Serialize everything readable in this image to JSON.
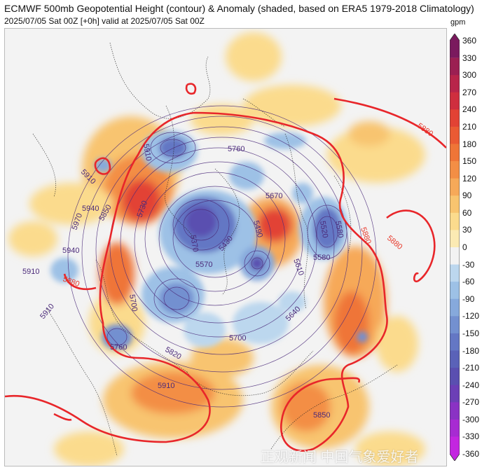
{
  "header": {
    "title": "ECMWF 500mb Geopotential Height (contour) & Anomaly (shaded, based on ERA5 1979-2018 Climatology)",
    "subtitle": "2025/07/05 Sat 00Z [+0h] valid at 2025/07/05 Sat 00Z"
  },
  "colorbar": {
    "unit": "gpm",
    "ticks": [
      "360",
      "330",
      "300",
      "270",
      "240",
      "210",
      "180",
      "150",
      "120",
      "90",
      "60",
      "30",
      "0",
      "-30",
      "-60",
      "-90",
      "-120",
      "-150",
      "-180",
      "-210",
      "-240",
      "-270",
      "-300",
      "-330",
      "-360"
    ],
    "colors": [
      "#7a1a5e",
      "#9b1f52",
      "#b8254a",
      "#cf2e3e",
      "#e24234",
      "#ea5a33",
      "#ef7537",
      "#f38e45",
      "#f6a959",
      "#f8c46f",
      "#fbdb8d",
      "#fbeab3",
      "#f2f2f2",
      "#bcd7ee",
      "#9dc1e6",
      "#86a9dc",
      "#7390d0",
      "#6477c4",
      "#5a62b8",
      "#5a4fb0",
      "#6c3fb6",
      "#8a32c4",
      "#a72bd2",
      "#c326e0"
    ]
  },
  "contour_labels": [
    {
      "text": "5880",
      "color": "#e8392b"
    },
    {
      "text": "5880",
      "color": "#e8392b"
    },
    {
      "text": "5880",
      "color": "#e8392b"
    },
    {
      "text": "5880",
      "color": "#e8392b"
    },
    {
      "text": "5910",
      "color": "#4b2a7a"
    },
    {
      "text": "5910",
      "color": "#4b2a7a"
    },
    {
      "text": "5910",
      "color": "#4b2a7a"
    },
    {
      "text": "5910",
      "color": "#4b2a7a"
    },
    {
      "text": "5910",
      "color": "#4b2a7a"
    },
    {
      "text": "5940",
      "color": "#4b2a7a"
    },
    {
      "text": "5940",
      "color": "#4b2a7a"
    },
    {
      "text": "5970",
      "color": "#4b2a7a"
    },
    {
      "text": "5850",
      "color": "#4b2a7a"
    },
    {
      "text": "5850",
      "color": "#4b2a7a"
    },
    {
      "text": "5820",
      "color": "#4b2a7a"
    },
    {
      "text": "5760",
      "color": "#4b2a7a"
    },
    {
      "text": "5760",
      "color": "#4b2a7a"
    },
    {
      "text": "5730",
      "color": "#4b2a7a"
    },
    {
      "text": "5700",
      "color": "#4b2a7a"
    },
    {
      "text": "5700",
      "color": "#4b2a7a"
    },
    {
      "text": "5670",
      "color": "#4b2a7a"
    },
    {
      "text": "5640",
      "color": "#4b2a7a"
    },
    {
      "text": "5610",
      "color": "#4b2a7a"
    },
    {
      "text": "5580",
      "color": "#4b2a7a"
    },
    {
      "text": "5580",
      "color": "#4b2a7a"
    },
    {
      "text": "5520",
      "color": "#4b2a7a"
    },
    {
      "text": "5490",
      "color": "#4b2a7a"
    },
    {
      "text": "5430",
      "color": "#4b2a7a"
    },
    {
      "text": "5370",
      "color": "#4b2a7a"
    },
    {
      "text": "5570",
      "color": "#4b2a7a"
    }
  ],
  "watermark": "正观新闻 中国气象爱好者"
}
